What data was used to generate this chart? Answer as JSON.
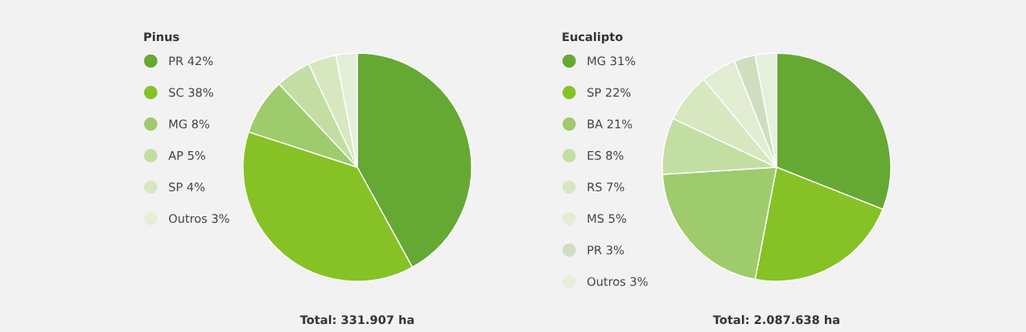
{
  "chart_data": [
    {
      "type": "pie",
      "title": "Pinus",
      "categories": [
        "PR",
        "SC",
        "MG",
        "AP",
        "SP",
        "Outros"
      ],
      "values": [
        42,
        38,
        8,
        5,
        4,
        3
      ],
      "value_labels": [
        "42%",
        "38%",
        "8%",
        "5%",
        "4%",
        "3%"
      ],
      "colors": [
        "#66a834",
        "#86c226",
        "#9ecb6c",
        "#c3dea2",
        "#d7e8c0",
        "#e4efd7"
      ],
      "legend": "left",
      "annotations": [
        "Total: 331.907 ha"
      ]
    },
    {
      "type": "pie",
      "title": "Eucalipto",
      "categories": [
        "MG",
        "SP",
        "BA",
        "ES",
        "RS",
        "MS",
        "PR",
        "Outros"
      ],
      "values": [
        31,
        22,
        21,
        8,
        7,
        5,
        3,
        3
      ],
      "value_labels": [
        "31%",
        "22%",
        "21%",
        "8%",
        "7%",
        "5%",
        "3%",
        "3%"
      ],
      "colors": [
        "#66a834",
        "#86c226",
        "#9ecb6c",
        "#c3dea2",
        "#d7e8c0",
        "#e2edd4",
        "#d0dec0",
        "#e6efdc"
      ],
      "legend": "left",
      "annotations": [
        "Total: 2.087.638 ha"
      ]
    }
  ]
}
